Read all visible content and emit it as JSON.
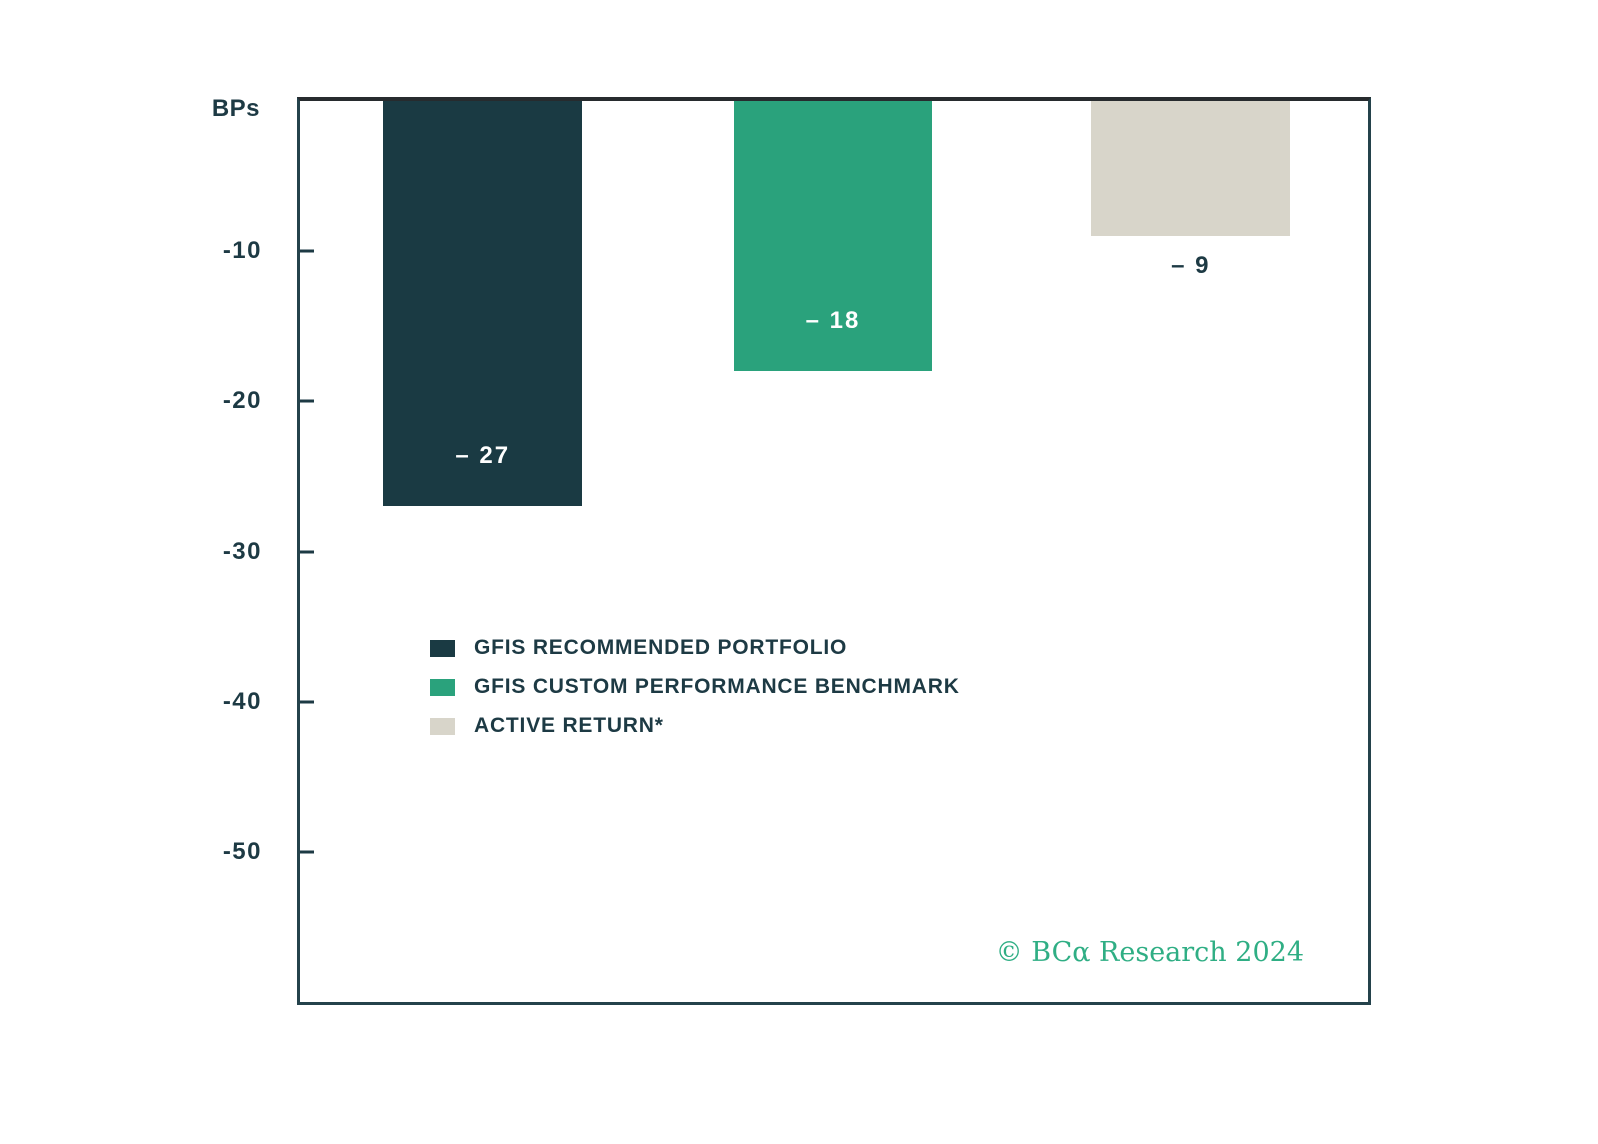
{
  "chart": {
    "y_axis_title": "BPs",
    "tick_labels": [
      "-10",
      "-20",
      "-30",
      "-40",
      "-50"
    ]
  },
  "chart_data": {
    "type": "bar",
    "categories": [
      "GFIS RECOMMENDED PORTFOLIO",
      "GFIS CUSTOM PERFORMANCE BENCHMARK",
      "ACTIVE RETURN*"
    ],
    "values": [
      -27,
      -18,
      -9
    ],
    "bar_labels": [
      "– 27",
      "– 18",
      "– 9"
    ],
    "colors": [
      "#1a3a43",
      "#2aa27c",
      "#d8d5ca"
    ],
    "label_inside": [
      true,
      true,
      false
    ],
    "title": "",
    "xlabel": "",
    "ylabel": "BPs",
    "ylim": [
      -60,
      0
    ],
    "yticks": [
      -10,
      -20,
      -30,
      -40,
      -50
    ],
    "grid": false,
    "legend_position": "inside-middle-left",
    "bars_anchored_at": 0
  },
  "legend": {
    "items": [
      {
        "label": "GFIS RECOMMENDED PORTFOLIO",
        "color": "#1a3a43"
      },
      {
        "label": "GFIS CUSTOM PERFORMANCE BENCHMARK",
        "color": "#2aa27c"
      },
      {
        "label": "ACTIVE RETURN*",
        "color": "#d8d5ca"
      }
    ]
  },
  "footer": {
    "copyright": "© BCα Research 2024"
  },
  "colors": {
    "axis_text": "#1d3a44",
    "border": "#24424b",
    "bar_label_inside": "#ffffff",
    "bar_label_outside": "#1d3a44",
    "copyright_green": "#2fae84",
    "background": "#ffffff"
  }
}
